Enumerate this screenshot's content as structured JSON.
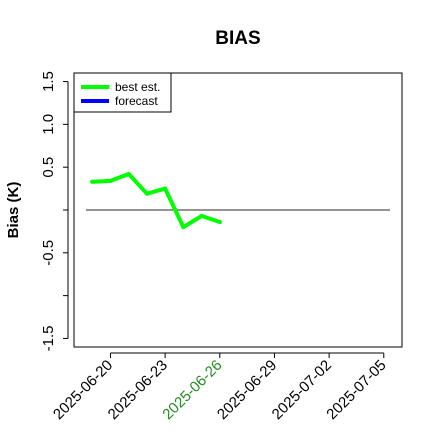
{
  "chart_data": {
    "type": "line",
    "title": "BIAS",
    "xlabel": "",
    "ylabel": "Bias (K)",
    "x_range": [
      "2025-06-18",
      "2025-07-06"
    ],
    "ylim": [
      -1.6,
      1.6
    ],
    "grid": false,
    "y_tick_labels": [
      {
        "value": -1.5,
        "label": "-1.5"
      },
      {
        "value": -1.0,
        "label": ""
      },
      {
        "value": -0.5,
        "label": "-0.5"
      },
      {
        "value": 0.0,
        "label": ""
      },
      {
        "value": 0.5,
        "label": "0.5"
      },
      {
        "value": 1.0,
        "label": "1.0"
      },
      {
        "value": 1.5,
        "label": "1.5"
      }
    ],
    "x_tick_labels": [
      {
        "x": "2025-06-20",
        "label": "2025-06-20",
        "color": "#000000"
      },
      {
        "x": "2025-06-23",
        "label": "2025-06-23",
        "color": "#000000"
      },
      {
        "x": "2025-06-26",
        "label": "2025-06-26",
        "color": "#228b22"
      },
      {
        "x": "2025-06-29",
        "label": "2025-06-29",
        "color": "#000000"
      },
      {
        "x": "2025-07-02",
        "label": "2025-07-02",
        "color": "#000000"
      },
      {
        "x": "2025-07-05",
        "label": "2025-07-05",
        "color": "#000000"
      }
    ],
    "zero_line": {
      "value": 0,
      "x_start": "2025-06-18",
      "x_end": "2025-07-06",
      "color": "#555555"
    },
    "legend": {
      "placement": "top-left",
      "entries": [
        {
          "label": "best est.",
          "color": "#00ff00"
        },
        {
          "label": "forecast",
          "color": "#0000ff"
        }
      ]
    },
    "series": [
      {
        "name": "best est.",
        "color": "#00ff00",
        "x": [
          "2025-06-19",
          "2025-06-20",
          "2025-06-21",
          "2025-06-22",
          "2025-06-23",
          "2025-06-24",
          "2025-06-25",
          "2025-06-26"
        ],
        "y": [
          0.33,
          0.34,
          0.42,
          0.19,
          0.25,
          -0.2,
          -0.07,
          -0.14
        ]
      },
      {
        "name": "forecast",
        "color": "#0000ff",
        "x": [],
        "y": []
      }
    ]
  }
}
